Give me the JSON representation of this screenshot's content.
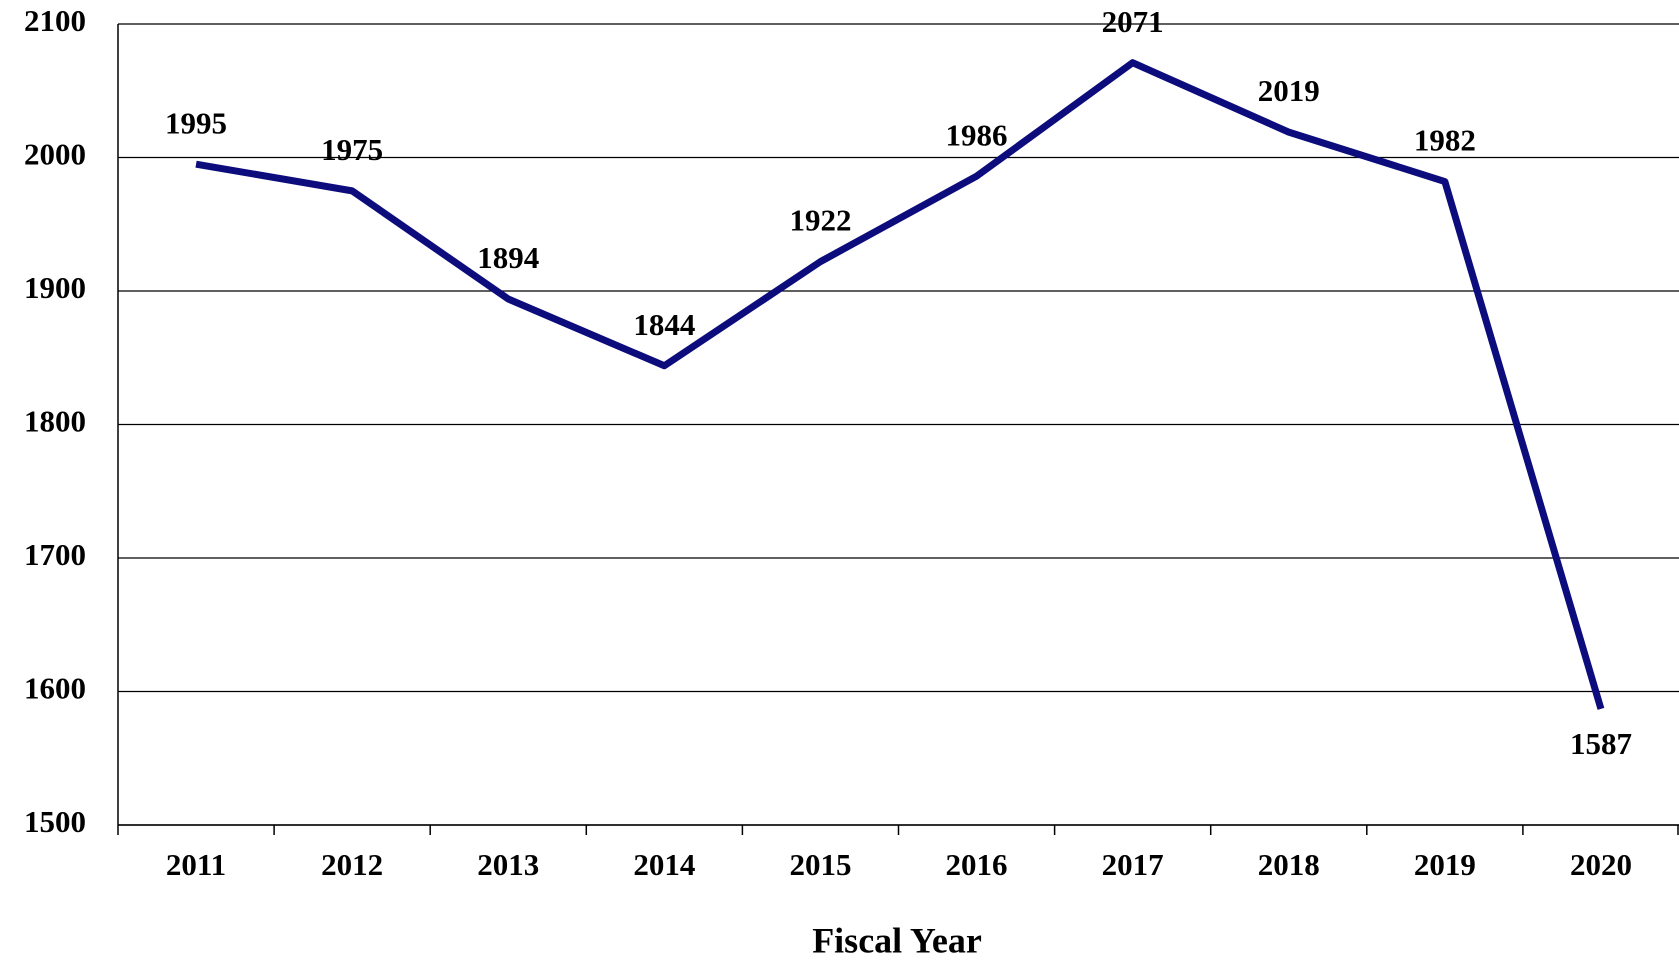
{
  "chart_data": {
    "type": "line",
    "x_label": "Fiscal Year",
    "categories": [
      "2011",
      "2012",
      "2013",
      "2014",
      "2015",
      "2016",
      "2017",
      "2018",
      "2019",
      "2020"
    ],
    "values": [
      1995,
      1975,
      1894,
      1844,
      1922,
      1986,
      2071,
      2019,
      1982,
      1587
    ],
    "color": "#0c0c7c",
    "ylim": [
      1500,
      2100
    ],
    "yticks": [
      1500,
      1600,
      1700,
      1800,
      1900,
      2000,
      2100
    ],
    "grid": true
  }
}
